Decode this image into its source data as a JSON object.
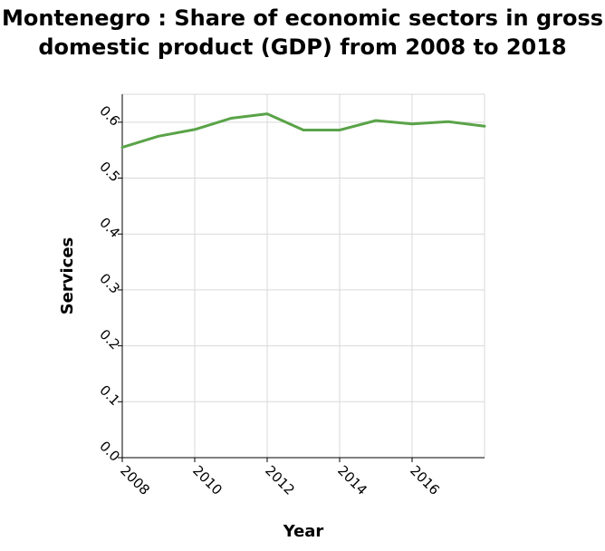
{
  "chart_data": {
    "type": "line",
    "title": "Montenegro : Share of economic sectors in gross domestic product (GDP) from 2008 to 2018",
    "xlabel": "Year",
    "ylabel": "Services",
    "xlim": [
      2008,
      2018
    ],
    "ylim": [
      0,
      0.65
    ],
    "xticks": [
      2008,
      2010,
      2012,
      2014,
      2016
    ],
    "xtick_labels": [
      "2008",
      "2010",
      "2012",
      "2014",
      "2016"
    ],
    "yticks": [
      0,
      0.1,
      0.2,
      0.3,
      0.4,
      0.5,
      0.6
    ],
    "ytick_labels": [
      "0.0",
      "0.1",
      "0.2",
      "0.3",
      "0.4",
      "0.5",
      "0.6"
    ],
    "grid": true,
    "series": [
      {
        "color": "#5aa348",
        "x": [
          2008,
          2009,
          2010,
          2011,
          2012,
          2013,
          2014,
          2015,
          2016,
          2017,
          2018
        ],
        "values": [
          0.555,
          0.575,
          0.587,
          0.607,
          0.615,
          0.586,
          0.586,
          0.603,
          0.597,
          0.601,
          0.593
        ]
      }
    ]
  }
}
